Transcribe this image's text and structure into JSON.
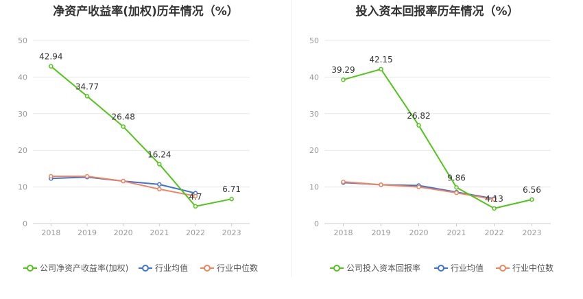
{
  "charts": [
    {
      "title": "净资产收益率(加权)历年情况（%）",
      "legend": [
        "公司净资产收益率(加权)",
        "行业均值",
        "行业中位数"
      ]
    },
    {
      "title": "投入资本回报率历年情况（%）",
      "legend": [
        "公司投入资本回报率",
        "行业均值",
        "行业中位数"
      ]
    }
  ],
  "colors": {
    "company": "#52c41a",
    "mean": "#3b73d9",
    "median": "#f0845c",
    "axis": "#999999",
    "grid": "#e8e8e8"
  },
  "chart_data": [
    {
      "type": "line",
      "title": "净资产收益率(加权)历年情况（%）",
      "xlabel": "",
      "ylabel": "",
      "ylim": [
        0,
        50
      ],
      "yticks": [
        0,
        10,
        20,
        30,
        40,
        50
      ],
      "categories": [
        "2018",
        "2019",
        "2020",
        "2021",
        "2022",
        "2023"
      ],
      "grid": true,
      "legend_position": "bottom",
      "series": [
        {
          "name": "公司净资产收益率(加权)",
          "values": [
            42.94,
            34.77,
            26.48,
            16.24,
            4.7,
            6.71
          ],
          "labels": [
            "42.94",
            "34.77",
            "26.48",
            "16.24",
            "4.7",
            "6.71"
          ]
        },
        {
          "name": "行业均值",
          "values": [
            12.3,
            12.7,
            11.6,
            10.7,
            8.3,
            null
          ]
        },
        {
          "name": "行业中位数",
          "values": [
            12.9,
            12.9,
            11.6,
            9.4,
            7.5,
            null
          ]
        }
      ]
    },
    {
      "type": "line",
      "title": "投入资本回报率历年情况（%）",
      "xlabel": "",
      "ylabel": "",
      "ylim": [
        0,
        50
      ],
      "yticks": [
        0,
        10,
        20,
        30,
        40,
        50
      ],
      "categories": [
        "2018",
        "2019",
        "2020",
        "2021",
        "2022",
        "2023"
      ],
      "grid": true,
      "legend_position": "bottom",
      "series": [
        {
          "name": "公司投入资本回报率",
          "values": [
            39.29,
            42.15,
            26.82,
            9.86,
            4.13,
            6.56
          ],
          "labels": [
            "39.29",
            "42.15",
            "26.82",
            "9.86",
            "4.13",
            "6.56"
          ]
        },
        {
          "name": "行业均值",
          "values": [
            11.2,
            10.6,
            10.4,
            8.6,
            6.8,
            null
          ]
        },
        {
          "name": "行业中位数",
          "values": [
            11.4,
            10.6,
            10.0,
            8.4,
            6.6,
            null
          ]
        }
      ]
    }
  ]
}
